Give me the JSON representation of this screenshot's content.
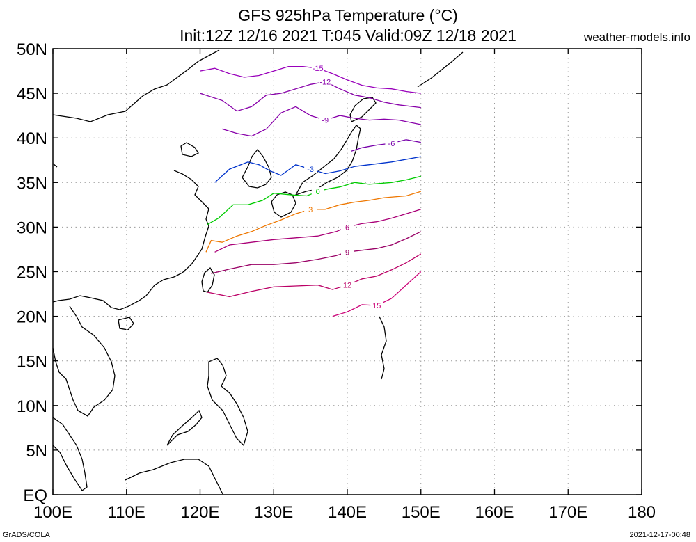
{
  "header": {
    "title_line_1": "GFS 925hPa Temperature (°C)",
    "title_line_2": "Init:12Z 12/16 2021 T:045 Valid:09Z 12/18 2021",
    "site": "weather-models.info"
  },
  "footer": {
    "left": "GrADS/COLA",
    "right": "2021-12-17-00:48"
  },
  "map": {
    "lon_labels": [
      "100E",
      "110E",
      "120E",
      "130E",
      "140E",
      "150E",
      "160E",
      "170E",
      "180"
    ],
    "lat_labels": [
      "EQ",
      "5N",
      "10N",
      "15N",
      "20N",
      "25N",
      "30N",
      "35N",
      "40N",
      "45N",
      "50N"
    ],
    "lon_range": [
      100,
      180
    ],
    "lat_range": [
      0,
      50
    ],
    "grid": "dotted",
    "contours": [
      {
        "label": "15",
        "color": "#cc0077",
        "pts": [
          [
            138,
            20
          ],
          [
            140,
            20.5
          ],
          [
            142,
            21.3
          ],
          [
            144,
            21.2
          ],
          [
            146,
            22
          ],
          [
            148,
            23.5
          ],
          [
            150,
            25
          ]
        ]
      },
      {
        "label": "12",
        "color": "#bb0066",
        "pts": [
          [
            121,
            22.7
          ],
          [
            124,
            22.2
          ],
          [
            127,
            22.8
          ],
          [
            130,
            23.3
          ],
          [
            133,
            23.4
          ],
          [
            136,
            23.5
          ],
          [
            138,
            23
          ],
          [
            140,
            23.5
          ],
          [
            142,
            24.2
          ],
          [
            144,
            24.5
          ],
          [
            146,
            25.2
          ],
          [
            148,
            26
          ],
          [
            150,
            27
          ]
        ]
      },
      {
        "label": "9",
        "color": "#990066",
        "pts": [
          [
            121.5,
            24.8
          ],
          [
            124,
            25.3
          ],
          [
            127,
            25.8
          ],
          [
            130,
            25.8
          ],
          [
            133,
            26
          ],
          [
            136,
            26.4
          ],
          [
            138.5,
            26.8
          ],
          [
            140,
            27.2
          ],
          [
            142,
            27.4
          ],
          [
            144,
            27.6
          ],
          [
            146,
            28
          ],
          [
            148,
            28.7
          ],
          [
            150,
            29.5
          ]
        ]
      },
      {
        "label": "6",
        "color": "#aa0077",
        "pts": [
          [
            122,
            27.2
          ],
          [
            124,
            28
          ],
          [
            127,
            28.3
          ],
          [
            130,
            28.6
          ],
          [
            133,
            28.8
          ],
          [
            136,
            29
          ],
          [
            138.5,
            29.5
          ],
          [
            140,
            30
          ],
          [
            142,
            30.4
          ],
          [
            144,
            30.6
          ],
          [
            146,
            31
          ],
          [
            148,
            31.5
          ],
          [
            150,
            32
          ]
        ]
      },
      {
        "label": "3",
        "color": "#ee7700",
        "pts": [
          [
            120.8,
            27.2
          ],
          [
            121.5,
            28.5
          ],
          [
            123,
            28.3
          ],
          [
            125,
            29
          ],
          [
            127,
            29.5
          ],
          [
            129,
            30.2
          ],
          [
            131,
            30.8
          ],
          [
            133,
            31.5
          ],
          [
            135,
            32
          ],
          [
            137,
            32
          ],
          [
            139,
            32.5
          ],
          [
            141,
            32.8
          ],
          [
            143,
            33
          ],
          [
            145,
            33.3
          ],
          [
            148,
            33.5
          ],
          [
            150,
            34
          ]
        ]
      },
      {
        "label": "0",
        "color": "#00cc00",
        "pts": [
          [
            121,
            30.3
          ],
          [
            122.5,
            31
          ],
          [
            124.5,
            32.5
          ],
          [
            126.5,
            32.5
          ],
          [
            128.5,
            33
          ],
          [
            130,
            33.8
          ],
          [
            132.5,
            33.6
          ],
          [
            134.5,
            33.5
          ],
          [
            136,
            34
          ],
          [
            137.5,
            34.3
          ],
          [
            139,
            34.5
          ],
          [
            141,
            35
          ],
          [
            143,
            34.8
          ],
          [
            146,
            35
          ],
          [
            148,
            35.3
          ],
          [
            150,
            35.7
          ]
        ]
      },
      {
        "label": "-3",
        "color": "#0033cc",
        "pts": [
          [
            122,
            35
          ],
          [
            124,
            36.5
          ],
          [
            126.5,
            37.3
          ],
          [
            128,
            37
          ],
          [
            129.5,
            36.3
          ],
          [
            131,
            35.8
          ],
          [
            133,
            37
          ],
          [
            135,
            36.5
          ],
          [
            137,
            36
          ],
          [
            139,
            36.3
          ],
          [
            141,
            36.8
          ],
          [
            143,
            37
          ],
          [
            146,
            37.3
          ],
          [
            150,
            37.9
          ]
        ]
      },
      {
        "label": "-6",
        "color": "#7700aa",
        "pts": [
          [
            140.5,
            38.5
          ],
          [
            142,
            38.9
          ],
          [
            144,
            39.2
          ],
          [
            146,
            39.4
          ],
          [
            148,
            39.8
          ],
          [
            150,
            39.5
          ]
        ]
      },
      {
        "label": "-9",
        "color": "#8800aa",
        "pts": [
          [
            123,
            41
          ],
          [
            125,
            40.5
          ],
          [
            127,
            40.2
          ],
          [
            129,
            41
          ],
          [
            131,
            42.8
          ],
          [
            133,
            43.5
          ],
          [
            135,
            42.5
          ],
          [
            137,
            42
          ],
          [
            139,
            42.5
          ],
          [
            141,
            42.2
          ],
          [
            143,
            42
          ],
          [
            145,
            42.1
          ],
          [
            147,
            42
          ],
          [
            150,
            41.5
          ]
        ]
      },
      {
        "label": "-12",
        "color": "#8800aa",
        "pts": [
          [
            120,
            45
          ],
          [
            123,
            44.2
          ],
          [
            125,
            43
          ],
          [
            127,
            43.5
          ],
          [
            129,
            44.8
          ],
          [
            131,
            45
          ],
          [
            133,
            45.5
          ],
          [
            135,
            46
          ],
          [
            137,
            46.3
          ],
          [
            139,
            45.5
          ],
          [
            141,
            44.8
          ],
          [
            143,
            44.5
          ],
          [
            145,
            44
          ],
          [
            147,
            43.7
          ],
          [
            150,
            43.4
          ]
        ]
      },
      {
        "label": "-15",
        "color": "#9900bb",
        "pts": [
          [
            120,
            47.5
          ],
          [
            122,
            47.8
          ],
          [
            124,
            47.2
          ],
          [
            126,
            46.8
          ],
          [
            128,
            47
          ],
          [
            130,
            47.5
          ],
          [
            132,
            48
          ],
          [
            134,
            48
          ],
          [
            136,
            47.8
          ],
          [
            138,
            47.2
          ],
          [
            140,
            46.5
          ],
          [
            142,
            45.9
          ],
          [
            144,
            45.6
          ],
          [
            146,
            45.5
          ],
          [
            148,
            45.2
          ],
          [
            150,
            45
          ]
        ]
      }
    ]
  }
}
